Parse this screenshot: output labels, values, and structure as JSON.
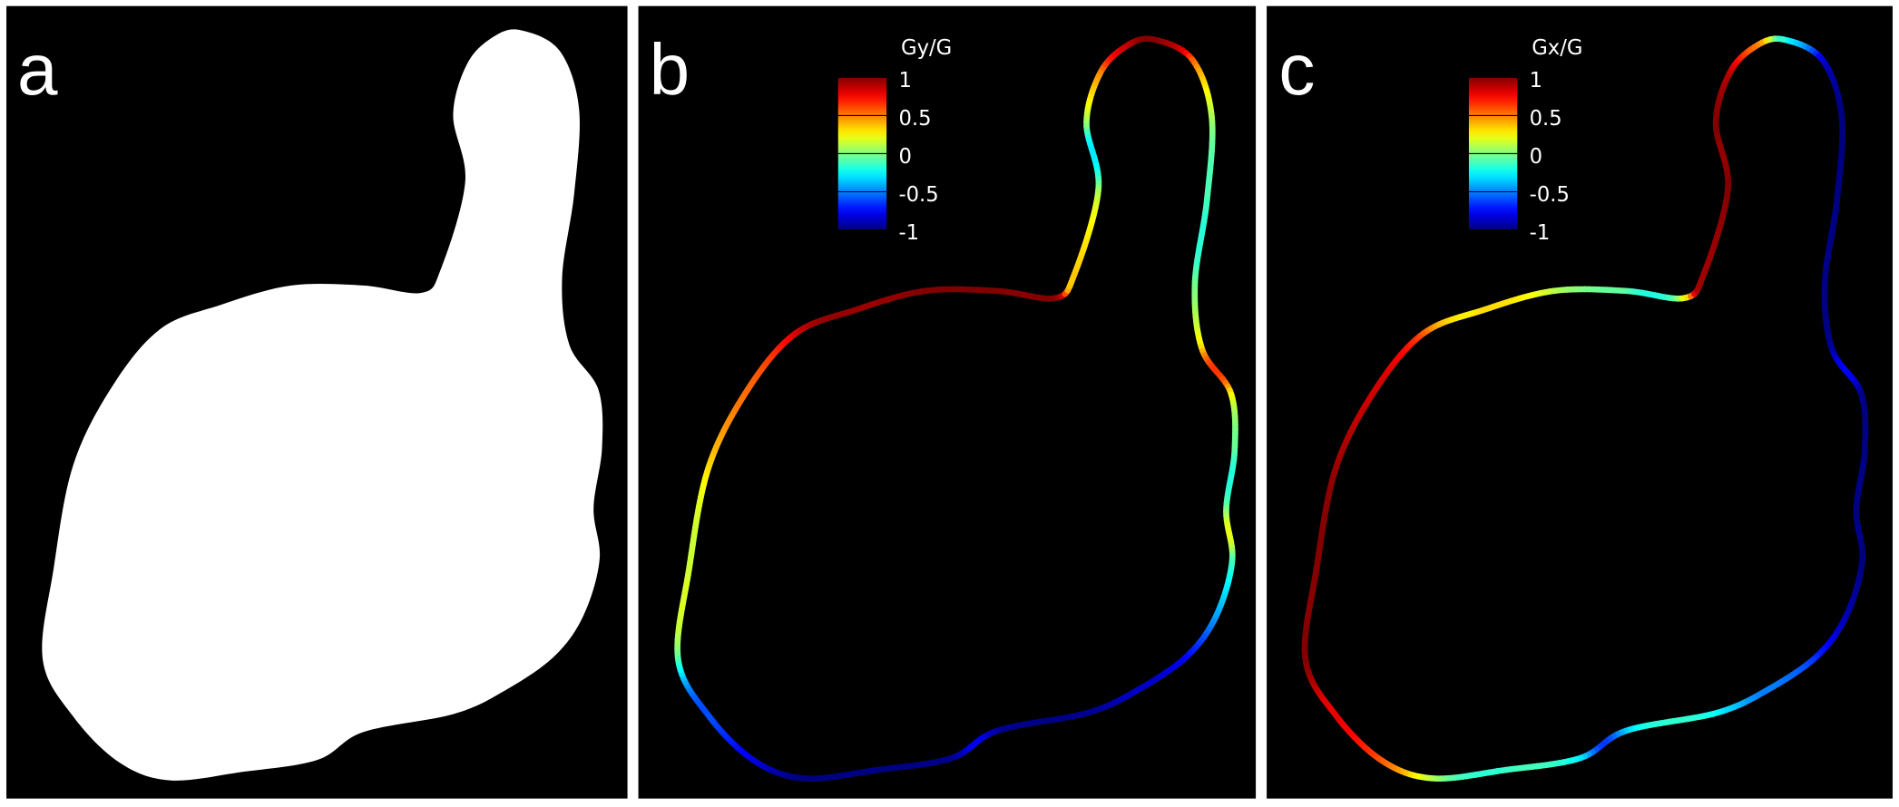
{
  "panels": [
    {
      "label": "a"
    },
    {
      "label": "b",
      "colorbar": {
        "title": "Gy/G",
        "limits": [
          -1,
          1
        ],
        "ticks": [
          1,
          0.5,
          0,
          -0.5,
          -1
        ]
      }
    },
    {
      "label": "c",
      "colorbar": {
        "title": "Gx/G",
        "limits": [
          -1,
          1
        ],
        "ticks": [
          1,
          0.5,
          0,
          -0.5,
          -1
        ]
      }
    }
  ]
}
